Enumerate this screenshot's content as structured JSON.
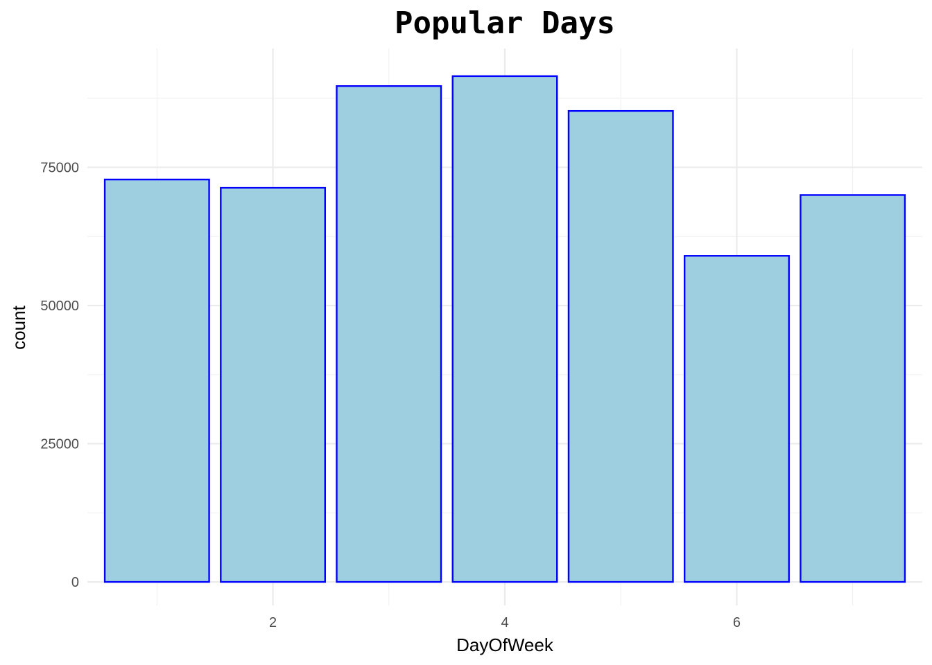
{
  "chart_data": {
    "type": "bar",
    "title": "Popular Days",
    "xlabel": "DayOfWeek",
    "ylabel": "count",
    "categories": [
      1,
      2,
      3,
      4,
      5,
      6,
      7
    ],
    "values": [
      72800,
      71300,
      89700,
      91500,
      85200,
      59000,
      70000
    ],
    "xlim": [
      0.4,
      7.6
    ],
    "ylim": [
      -4250,
      96500
    ],
    "x_ticks": [
      2,
      4,
      6
    ],
    "y_ticks": [
      0,
      25000,
      50000,
      75000
    ],
    "grid": true,
    "legend": "none",
    "colors": {
      "bar_fill": "#9ecfe0",
      "bar_outline": "#0000ff",
      "grid_major": "#ebebeb",
      "grid_minor": "#f2f2f2",
      "tick_text": "#4d4d4d",
      "text": "#000000"
    }
  }
}
